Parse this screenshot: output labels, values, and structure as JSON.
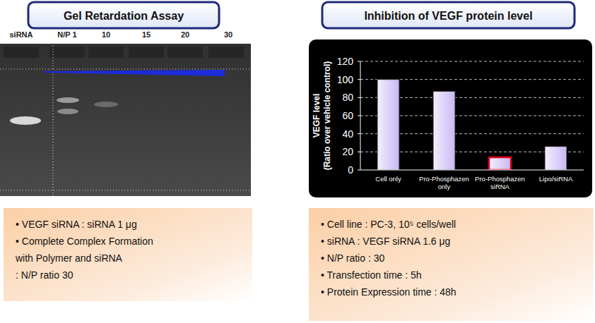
{
  "chart_data": {
    "type": "bar",
    "title": "Inhibition of VEGF protein level",
    "ylabel": [
      "VEGF level",
      "(Ratio over vehicle control)"
    ],
    "categories": [
      "Cell only",
      "Pro-Phosphazen only",
      "Pro-Phosphazen siRNA",
      "Lipo/siRNA"
    ],
    "values": [
      100,
      87,
      14,
      26
    ],
    "color": "#c9b8f2",
    "ylim": [
      0,
      120
    ],
    "yticks": [
      0,
      20,
      40,
      60,
      80,
      100,
      120
    ],
    "grid": true
  },
  "gel": {
    "title": "Gel Retardation Assay",
    "lanes": [
      "siRNA",
      "N/P 1",
      "10",
      "15",
      "20",
      "30"
    ]
  },
  "notes": {
    "left": [
      "• VEGF siRNA : siRNA 1 μg",
      "• Complete Complex Formation",
      "  with Polymer and siRNA",
      "  : N/P ratio 30"
    ],
    "right": [
      "• Cell line : PC-3, 10⁵ cells/well",
      "• siRNA : VEGF siRNA 1.6 μg",
      "•  N/P ratio : 30",
      "• Transfection time : 5h",
      "• Protein Expression time : 48h"
    ]
  }
}
